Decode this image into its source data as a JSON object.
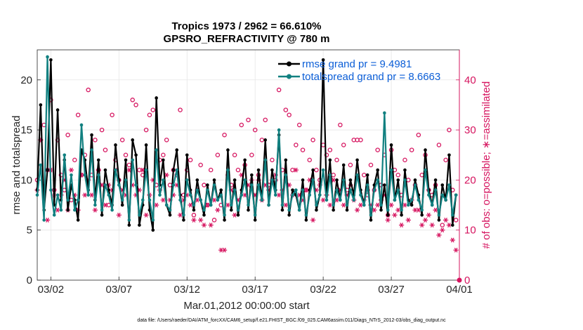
{
  "chart_data": {
    "type": "line",
    "title": "Tropics 1973 / 2962 = 66.610%",
    "subtitle": "GPSRO_REFRACTIVITY @ 780 m",
    "xlabel": "Mar.01,2012 00:00:00 start",
    "ylabel": "rmse and totalspread",
    "ylabel_right": "# of obs: o=possible; ∗=assimilated",
    "xlim": [
      0,
      31
    ],
    "ylim": [
      0,
      23
    ],
    "ylim_right": [
      0,
      46
    ],
    "x_ticks": [
      1,
      6,
      11,
      16,
      21,
      26,
      31
    ],
    "x_tick_labels": [
      "03/02",
      "03/07",
      "03/12",
      "03/17",
      "03/22",
      "03/27",
      "04/01"
    ],
    "y_ticks": [
      0,
      5,
      10,
      15,
      20
    ],
    "y_tick_labels": [
      "0",
      "5",
      "10",
      "15",
      "20"
    ],
    "y_ticks_right": [
      0,
      10,
      20,
      30,
      40
    ],
    "y_tick_labels_right": [
      "0",
      "10",
      "20",
      "30",
      "40"
    ],
    "grid": true,
    "legend_position": "top-right",
    "colors": {
      "rmse": "#000000",
      "totalspread": "#118080",
      "obs": "#d6145f",
      "legend_text": "#0b5ed7",
      "grid": "#e6e6e6",
      "axis": "#262626"
    },
    "series": [
      {
        "name": "rmse grand pr = 9.4981",
        "axis": "left",
        "x": [
          0.0,
          0.25,
          0.5,
          0.75,
          1.0,
          1.25,
          1.5,
          1.75,
          2.0,
          2.25,
          2.5,
          2.75,
          3.0,
          3.25,
          3.5,
          3.75,
          4.0,
          4.25,
          4.5,
          4.75,
          5.0,
          5.25,
          5.5,
          5.75,
          6.0,
          6.25,
          6.5,
          6.75,
          7.0,
          7.25,
          7.5,
          7.75,
          8.0,
          8.25,
          8.5,
          8.75,
          9.0,
          9.25,
          9.5,
          9.75,
          10.0,
          10.25,
          10.5,
          10.75,
          11.0,
          11.25,
          11.5,
          11.75,
          12.0,
          12.25,
          12.5,
          12.75,
          13.0,
          13.25,
          13.5,
          13.75,
          14.0,
          14.25,
          14.5,
          14.75,
          15.0,
          15.25,
          15.5,
          15.75,
          16.0,
          16.25,
          16.5,
          16.75,
          17.0,
          17.25,
          17.5,
          17.75,
          18.0,
          18.25,
          18.5,
          18.75,
          19.0,
          19.25,
          19.5,
          19.75,
          20.0,
          20.25,
          20.5,
          20.75,
          21.0,
          21.25,
          21.5,
          21.75,
          22.0,
          22.25,
          22.5,
          22.75,
          23.0,
          23.25,
          23.5,
          23.75,
          24.0,
          24.25,
          24.5,
          24.75,
          25.0,
          25.25,
          25.5,
          25.75,
          26.0,
          26.25,
          26.5,
          26.75,
          27.0,
          27.25,
          27.5,
          27.75,
          28.0,
          28.25,
          28.5,
          28.75,
          29.0,
          29.25,
          29.5,
          29.75,
          30.0,
          30.25,
          30.5,
          30.75
        ],
        "values": [
          9.0,
          17.5,
          7.0,
          11.0,
          22.0,
          7.5,
          17.0,
          8.0,
          12.0,
          7.0,
          9.5,
          8.0,
          6.0,
          13.0,
          12.0,
          9.0,
          14.5,
          8.0,
          12.0,
          6.5,
          11.0,
          9.0,
          7.5,
          13.5,
          10.0,
          7.5,
          12.0,
          5.5,
          14.0,
          12.5,
          5.5,
          7.5,
          13.5,
          7.0,
          5.0,
          18.2,
          9.5,
          12.0,
          7.5,
          6.5,
          11.0,
          13.0,
          8.5,
          6.0,
          12.5,
          9.0,
          7.0,
          10.0,
          8.0,
          6.5,
          9.5,
          7.5,
          10.0,
          8.0,
          9.0,
          6.0,
          13.0,
          7.0,
          10.0,
          6.5,
          9.0,
          12.0,
          7.0,
          10.5,
          6.0,
          11.0,
          8.0,
          14.0,
          7.5,
          11.0,
          9.0,
          14.5,
          7.0,
          12.0,
          6.5,
          9.0,
          8.5,
          7.0,
          10.0,
          6.0,
          9.0,
          11.0,
          7.0,
          8.5,
          22.0,
          8.5,
          12.0,
          7.0,
          10.0,
          8.0,
          11.5,
          7.0,
          10.0,
          8.5,
          12.0,
          9.0,
          7.5,
          10.5,
          6.0,
          9.5,
          11.0,
          7.0,
          9.5,
          6.5,
          13.5,
          8.0,
          10.0,
          6.5,
          11.0,
          8.0,
          7.5,
          10.0,
          8.5,
          6.5,
          13.0,
          9.0,
          7.5,
          10.0,
          6.0,
          9.5,
          8.0,
          12.5,
          5.5,
          8.5
        ]
      },
      {
        "name": "totalspread grand pr = 8.6663",
        "axis": "left",
        "x": [
          0.0,
          0.25,
          0.5,
          0.75,
          1.0,
          1.25,
          1.5,
          1.75,
          2.0,
          2.25,
          2.5,
          2.75,
          3.0,
          3.25,
          3.5,
          3.75,
          4.0,
          4.25,
          4.5,
          4.75,
          5.0,
          5.25,
          5.5,
          5.75,
          6.0,
          6.25,
          6.5,
          6.75,
          7.0,
          7.25,
          7.5,
          7.75,
          8.0,
          8.25,
          8.5,
          8.75,
          9.0,
          9.25,
          9.5,
          9.75,
          10.0,
          10.25,
          10.5,
          10.75,
          11.0,
          11.25,
          11.5,
          11.75,
          12.0,
          12.25,
          12.5,
          12.75,
          13.0,
          13.25,
          13.5,
          13.75,
          14.0,
          14.25,
          14.5,
          14.75,
          15.0,
          15.25,
          15.5,
          15.75,
          16.0,
          16.25,
          16.5,
          16.75,
          17.0,
          17.25,
          17.5,
          17.75,
          18.0,
          18.25,
          18.5,
          18.75,
          19.0,
          19.25,
          19.5,
          19.75,
          20.0,
          20.25,
          20.5,
          20.75,
          21.0,
          21.25,
          21.5,
          21.75,
          22.0,
          22.25,
          22.5,
          22.75,
          23.0,
          23.25,
          23.5,
          23.75,
          24.0,
          24.25,
          24.5,
          24.75,
          25.0,
          25.25,
          25.5,
          25.75,
          26.0,
          26.25,
          26.5,
          26.75,
          27.0,
          27.25,
          27.5,
          27.75,
          28.0,
          28.25,
          28.5,
          28.75,
          29.0,
          29.25,
          29.5,
          29.75,
          30.0,
          30.25,
          30.5,
          30.75
        ],
        "values": [
          8.5,
          11.5,
          6.0,
          22.3,
          9.0,
          6.5,
          8.5,
          7.0,
          12.5,
          8.0,
          10.5,
          7.0,
          8.0,
          15.5,
          10.5,
          8.5,
          13.0,
          7.5,
          10.5,
          7.0,
          9.5,
          8.5,
          7.0,
          11.0,
          9.5,
          8.0,
          10.0,
          6.0,
          12.0,
          9.5,
          6.5,
          8.0,
          11.0,
          8.0,
          6.0,
          13.0,
          8.5,
          10.0,
          7.5,
          7.0,
          9.5,
          11.0,
          8.0,
          6.5,
          10.0,
          8.5,
          7.5,
          9.0,
          8.0,
          7.0,
          9.0,
          7.5,
          9.5,
          8.0,
          8.5,
          6.5,
          11.0,
          7.5,
          9.0,
          7.0,
          8.5,
          10.0,
          7.5,
          9.5,
          6.5,
          9.5,
          8.0,
          12.0,
          7.5,
          10.0,
          8.5,
          15.0,
          7.5,
          10.5,
          7.0,
          8.5,
          9.0,
          7.0,
          9.0,
          6.5,
          8.5,
          10.0,
          7.5,
          8.5,
          11.0,
          8.0,
          10.5,
          7.5,
          9.0,
          8.0,
          10.0,
          7.5,
          9.0,
          8.0,
          10.5,
          8.5,
          7.5,
          9.5,
          6.5,
          9.0,
          10.0,
          7.5,
          16.7,
          7.0,
          11.0,
          8.0,
          9.0,
          7.0,
          10.0,
          7.5,
          8.0,
          9.5,
          8.0,
          7.0,
          11.0,
          8.5,
          7.5,
          9.0,
          6.5,
          8.5,
          8.0,
          9.5,
          6.5,
          8.5
        ]
      },
      {
        "name": "possible obs",
        "axis": "right",
        "marker": "circle",
        "x": [
          0.0,
          0.25,
          0.5,
          0.75,
          1.0,
          1.25,
          1.5,
          1.75,
          2.0,
          2.25,
          2.5,
          2.75,
          3.0,
          3.25,
          3.5,
          3.75,
          4.0,
          4.25,
          4.5,
          4.75,
          5.0,
          5.25,
          5.5,
          5.75,
          6.0,
          6.25,
          6.5,
          6.75,
          7.0,
          7.25,
          7.5,
          7.75,
          8.0,
          8.25,
          8.5,
          8.75,
          9.0,
          9.25,
          9.5,
          9.75,
          10.0,
          10.25,
          10.5,
          10.75,
          11.0,
          11.25,
          11.5,
          11.75,
          12.0,
          12.25,
          12.5,
          12.75,
          13.0,
          13.25,
          13.5,
          13.75,
          14.0,
          14.25,
          14.5,
          14.75,
          15.0,
          15.25,
          15.5,
          15.75,
          16.0,
          16.25,
          16.5,
          16.75,
          17.0,
          17.25,
          17.5,
          17.75,
          18.0,
          18.25,
          18.5,
          18.75,
          19.0,
          19.25,
          19.5,
          19.75,
          20.0,
          20.25,
          20.5,
          20.75,
          21.0,
          21.25,
          21.5,
          21.75,
          22.0,
          22.25,
          22.5,
          22.75,
          23.0,
          23.25,
          23.5,
          23.75,
          24.0,
          24.25,
          24.5,
          24.75,
          25.0,
          25.25,
          25.5,
          25.75,
          26.0,
          26.25,
          26.5,
          26.75,
          27.0,
          27.25,
          27.5,
          27.75,
          28.0,
          28.25,
          28.5,
          28.75,
          29.0,
          29.25,
          29.5,
          29.75,
          30.0,
          30.25,
          30.5,
          30.75
        ],
        "values": [
          20,
          28,
          31,
          22,
          36,
          18,
          28,
          21,
          18,
          29,
          16,
          24,
          33,
          21,
          25,
          38,
          21,
          28,
          22,
          30,
          26,
          15,
          33,
          24,
          20,
          28,
          25,
          23,
          36,
          35,
          22,
          21,
          30,
          33,
          34,
          19,
          24,
          25,
          28,
          19,
          22,
          21,
          34,
          17,
          22,
          24,
          13,
          18,
          23,
          19,
          15,
          22,
          12,
          25,
          15,
          29,
          21,
          19,
          25,
          22,
          31,
          23,
          32,
          25,
          30,
          21,
          28,
          32,
          19,
          24,
          20,
          38,
          22,
          34,
          33,
          22,
          27,
          31,
          26,
          18,
          24,
          28,
          22,
          20,
          27,
          25,
          26,
          21,
          24,
          31,
          27,
          18,
          23,
          28,
          28,
          28,
          21,
          17,
          23,
          18,
          26,
          19,
          25,
          13,
          26,
          22,
          21,
          17,
          24,
          20,
          26,
          19,
          29,
          21,
          25,
          18,
          17,
          19,
          27,
          11,
          24,
          30,
          18,
          12
        ]
      },
      {
        "name": "assimilated obs",
        "axis": "right",
        "marker": "asterisk",
        "x": [
          0.0,
          0.25,
          0.5,
          0.75,
          1.0,
          1.25,
          1.5,
          1.75,
          2.0,
          2.25,
          2.5,
          2.75,
          3.0,
          3.25,
          3.5,
          3.75,
          4.0,
          4.25,
          4.5,
          4.75,
          5.0,
          5.25,
          5.5,
          5.75,
          6.0,
          6.25,
          6.5,
          6.75,
          7.0,
          7.25,
          7.5,
          7.75,
          8.0,
          8.25,
          8.5,
          8.75,
          9.0,
          9.25,
          9.5,
          9.75,
          10.0,
          10.25,
          10.5,
          10.75,
          11.0,
          11.25,
          11.5,
          11.75,
          12.0,
          12.25,
          12.5,
          12.75,
          13.0,
          13.25,
          13.5,
          13.75,
          14.0,
          14.25,
          14.5,
          14.75,
          15.0,
          15.25,
          15.5,
          15.75,
          16.0,
          16.25,
          16.5,
          16.75,
          17.0,
          17.25,
          17.5,
          17.75,
          18.0,
          18.25,
          18.5,
          18.75,
          19.0,
          19.25,
          19.5,
          19.75,
          20.0,
          20.25,
          20.5,
          20.75,
          21.0,
          21.25,
          21.5,
          21.75,
          22.0,
          22.25,
          22.5,
          22.75,
          23.0,
          23.25,
          23.5,
          23.75,
          24.0,
          24.25,
          24.5,
          24.75,
          25.0,
          25.25,
          25.5,
          25.75,
          26.0,
          26.25,
          26.5,
          26.75,
          27.0,
          27.25,
          27.5,
          27.75,
          28.0,
          28.25,
          28.5,
          28.75,
          29.0,
          29.25,
          29.5,
          29.75,
          30.0,
          30.25,
          30.5,
          30.75
        ],
        "values": [
          18,
          28,
          19,
          12,
          22,
          17,
          14,
          17,
          20,
          14,
          22,
          17,
          14,
          21,
          17,
          20,
          17,
          14,
          22,
          19,
          15,
          19,
          18,
          22,
          13,
          18,
          17,
          22,
          19,
          17,
          18,
          22,
          13,
          17,
          20,
          15,
          18,
          16,
          21,
          16,
          17,
          19,
          13,
          16,
          17,
          15,
          12,
          16,
          12,
          11,
          15,
          11,
          16,
          14,
          6,
          6,
          15,
          18,
          13,
          16,
          21,
          17,
          19,
          20,
          17,
          20,
          16,
          19,
          18,
          20,
          21,
          17,
          18,
          15,
          19,
          17,
          22,
          17,
          16,
          18,
          20,
          12,
          18,
          19,
          16,
          17,
          15,
          20,
          16,
          18,
          15,
          17,
          19,
          16,
          14,
          15,
          16,
          18,
          15,
          14,
          15,
          16,
          17,
          12,
          15,
          13,
          14,
          11,
          15,
          12,
          16,
          14,
          14,
          11,
          12,
          13,
          11,
          14,
          9,
          10,
          12,
          11,
          8,
          6
        ]
      }
    ],
    "legend": {
      "entries": [
        "rmse grand pr = 9.4981",
        "totalspread grand pr = 8.6663"
      ]
    },
    "footer": "data file: /Users/raeder/DAI/ATM_forcXX/CAM6_setup/f.e21.FHIST_BGC.f09_025.CAM6assim.011/Diags_NTrS_2012-03/obs_diag_output.nc"
  }
}
